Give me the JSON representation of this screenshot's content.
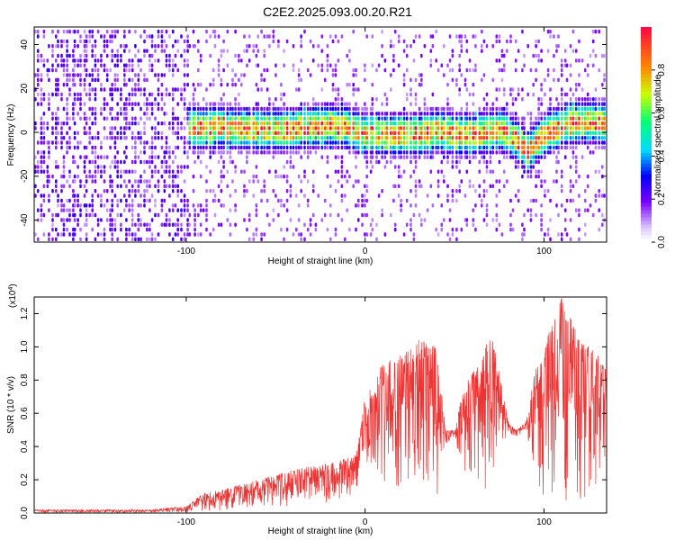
{
  "chart_data": [
    {
      "type": "heatmap",
      "title": "C2E2.2025.093.00.20.R21",
      "xlabel": "Height of straight line (km)",
      "ylabel": "Frequency (Hz)",
      "xlim": [
        -185,
        135
      ],
      "ylim": [
        -50,
        48
      ],
      "xticks": [
        -100,
        0,
        100
      ],
      "yticks": [
        -40,
        -20,
        0,
        20,
        40
      ],
      "colorbar": {
        "label": "Normalized spectral amplitude",
        "range": [
          0.0,
          1.0
        ],
        "ticks": [
          0.0,
          0.2,
          0.4,
          0.6,
          0.8
        ]
      },
      "ridge": {
        "x": [
          -105,
          -95,
          -80,
          -60,
          -45,
          -35,
          -20,
          -10,
          -5,
          0,
          10,
          20,
          30,
          40,
          45,
          50,
          60,
          70,
          75,
          80,
          85,
          90,
          100,
          110,
          120,
          135
        ],
        "y": [
          3,
          3,
          3,
          2,
          2,
          3,
          4,
          3,
          1,
          0,
          0,
          0,
          0,
          2,
          1,
          0,
          0,
          1,
          2,
          0,
          -3,
          -8,
          0,
          4,
          6,
          5
        ]
      },
      "grid": false
    },
    {
      "type": "line",
      "xlabel": "Height of straight line (km)",
      "ylabel": "SNR (10 * v/v)",
      "y_multiplier": "(x10",
      "y_multiplier_exp": "4",
      "y_multiplier_close": ")",
      "xlim": [
        -185,
        135
      ],
      "ylim": [
        0,
        1.3
      ],
      "xticks": [
        -100,
        0,
        100
      ],
      "yticks": [
        0.0,
        0.2,
        0.4,
        0.6,
        0.8,
        1.0,
        1.2
      ],
      "envelope": {
        "x": [
          -185,
          -120,
          -100,
          -90,
          -80,
          -60,
          -40,
          -20,
          -5,
          0,
          10,
          20,
          30,
          40,
          45,
          50,
          55,
          60,
          65,
          70,
          75,
          80,
          85,
          90,
          95,
          100,
          110,
          120,
          130,
          135
        ],
        "upper": [
          0.02,
          0.02,
          0.04,
          0.12,
          0.14,
          0.2,
          0.26,
          0.3,
          0.35,
          0.7,
          0.9,
          0.95,
          1.05,
          1.0,
          0.5,
          0.5,
          0.75,
          0.85,
          0.9,
          1.1,
          0.85,
          0.55,
          0.5,
          0.55,
          0.85,
          1.0,
          1.3,
          1.05,
          0.95,
          0.85
        ],
        "lower": [
          0.0,
          0.0,
          0.0,
          0.0,
          0.0,
          0.02,
          0.04,
          0.06,
          0.08,
          0.28,
          0.1,
          0.05,
          0.02,
          0.05,
          0.4,
          0.45,
          0.2,
          0.1,
          0.05,
          0.05,
          0.3,
          0.48,
          0.45,
          0.5,
          0.1,
          0.0,
          0.0,
          0.0,
          0.05,
          0.1
        ]
      },
      "color": "#ee3333",
      "grid": false
    }
  ]
}
